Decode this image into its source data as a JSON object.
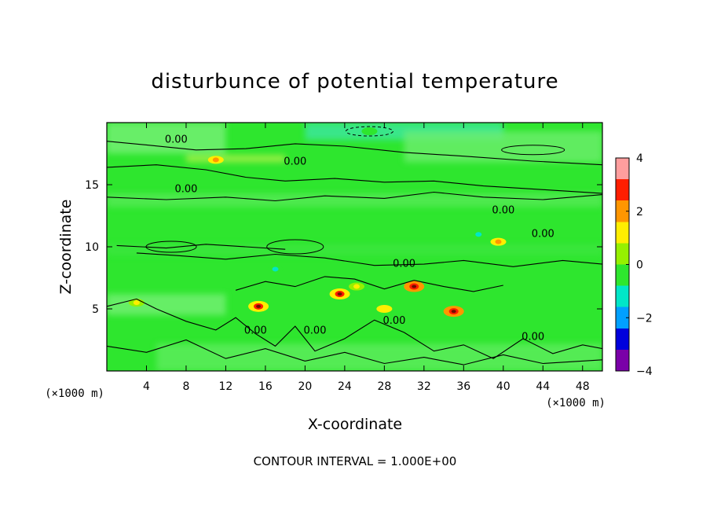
{
  "chart_data": {
    "type": "heatmap",
    "title": "disturbunce of potential temperature",
    "xlabel": "X-coordinate",
    "ylabel": "Z-coordinate",
    "x_unit_label": "(×1000 m)",
    "x_unit_label_right": "(×1000 m)",
    "xlim": [
      0,
      50
    ],
    "ylim": [
      0,
      20
    ],
    "x_ticks": [
      "4",
      "8",
      "12",
      "16",
      "20",
      "24",
      "28",
      "32",
      "36",
      "40",
      "44",
      "48"
    ],
    "y_ticks": [
      "5",
      "10",
      "15"
    ],
    "colorbar": {
      "range": [
        -4,
        4
      ],
      "ticks": [
        "4",
        "2",
        "0",
        "−2",
        "−4"
      ],
      "colors": [
        "#7a00a8",
        "#0000dc",
        "#00a0ff",
        "#00e6c8",
        "#2ee62e",
        "#96f000",
        "#ffee00",
        "#ff9600",
        "#ff1e00",
        "#ff9e9e"
      ]
    },
    "background_value": 0.0,
    "contour_labels": [
      "0.00",
      "0.00",
      "0.00",
      "0.00",
      "0.00",
      "0.00",
      "0.00",
      "0.00",
      "0.00",
      "0.00"
    ],
    "note": "CONTOUR INTERVAL = 1.000E+00",
    "grid": false,
    "anomalies": [
      {
        "x": 3.0,
        "z": 5.5,
        "value": 1.2
      },
      {
        "x": 15.3,
        "z": 5.2,
        "value": 2.4
      },
      {
        "x": 17.0,
        "z": 8.2,
        "value": -1.0
      },
      {
        "x": 23.5,
        "z": 6.2,
        "value": 2.6
      },
      {
        "x": 25.2,
        "z": 6.8,
        "value": 1.2
      },
      {
        "x": 28.0,
        "z": 5.0,
        "value": 1.4
      },
      {
        "x": 31.0,
        "z": 6.8,
        "value": 2.8
      },
      {
        "x": 35.0,
        "z": 4.8,
        "value": 2.9
      },
      {
        "x": 37.5,
        "z": 11.0,
        "value": -1.0
      },
      {
        "x": 39.5,
        "z": 10.4,
        "value": 1.6
      },
      {
        "x": 11.0,
        "z": 17.0,
        "value": 1.8
      },
      {
        "x": 26.5,
        "z": 19.3,
        "value": -0.8
      }
    ]
  }
}
